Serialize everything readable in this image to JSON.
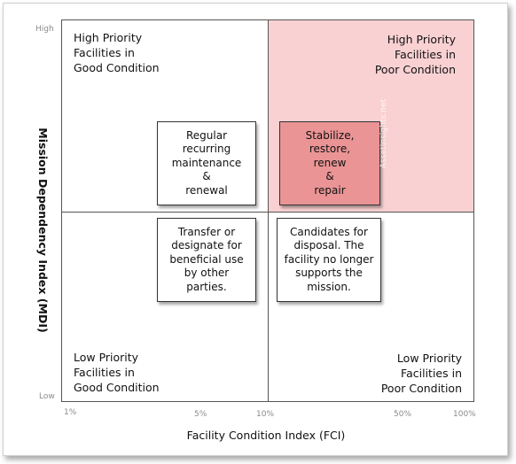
{
  "quadrants": {
    "top_left": "High Priority\nFacilities in\nGood Condition",
    "top_right": "High Priority\nFacilities in\nPoor Condition",
    "bottom_left": "Low Priority\nFacilities in\nGood Condition",
    "bottom_right": "Low Priority\nFacilities in\nPoor Condition"
  },
  "boxes": {
    "top_left": "Regular\nrecurring\nmaintenance\n&\nrenewal",
    "top_right": "Stabilize,\nrestore,\nrenew\n&\nrepair",
    "bottom_left": "Transfer or\ndesignate for\nbeneficial use\nby other\nparties.",
    "bottom_right": "Candidates for\ndisposal. The\nfacility no longer\nsupports the\nmission."
  },
  "axes": {
    "y_label": "Mission Dependency Index (MDI)",
    "y_high": "High",
    "y_low": "Low",
    "x_label": "Facility Condition Index (FCI)",
    "x_ticks": [
      "1%",
      "5%",
      "10%",
      "50%",
      "100%"
    ]
  },
  "watermark": "AssetInsights.net",
  "colors": {
    "high_priority_poor_quadrant": "#fad1d3",
    "action_box_highlight": "#ea9495"
  }
}
